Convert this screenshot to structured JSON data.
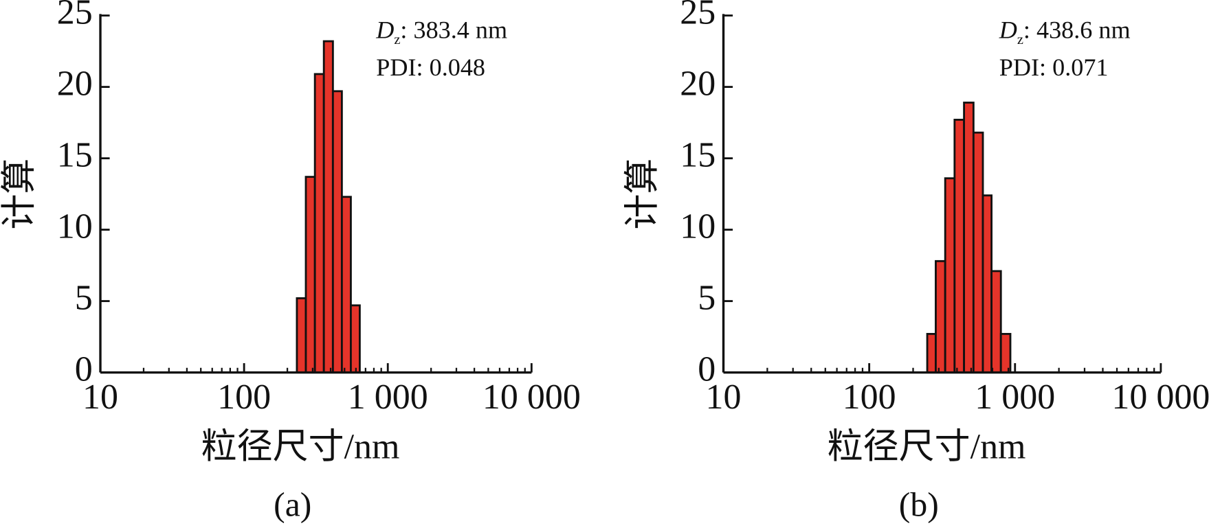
{
  "chart_data": [
    {
      "type": "histogram",
      "caption": "(a)",
      "x_label": "粒径尺寸/nm",
      "y_label": "计算",
      "annotation": {
        "symbol": "D",
        "subscript": "z",
        "text": ": 383.4 nm",
        "pdi": "PDI: 0.048"
      },
      "bins": [
        233,
        269,
        311,
        359,
        415,
        479,
        553,
        638
      ],
      "counts": [
        5.2,
        13.7,
        20.9,
        23.2,
        19.7,
        12.3,
        4.7
      ],
      "color": "#e5342a",
      "xlog": true,
      "xlim": [
        10,
        10000
      ],
      "xticks": [
        10,
        100,
        {
          "value": 1000,
          "label": "1 000"
        },
        {
          "value": 10000,
          "label": "10 000"
        }
      ],
      "ylim": [
        0,
        25
      ],
      "yticks": [
        0,
        5,
        10,
        15,
        20,
        25
      ]
    },
    {
      "type": "histogram",
      "caption": "(b)",
      "x_label": "粒径尺寸/nm",
      "y_label": "计算",
      "annotation": {
        "symbol": "D",
        "subscript": "z",
        "text": ": 438.6 nm",
        "pdi": "PDI: 0.071"
      },
      "bins": [
        250,
        286,
        332,
        385,
        447,
        519,
        602,
        690,
        800,
        929
      ],
      "counts": [
        2.7,
        7.8,
        13.6,
        17.7,
        18.9,
        16.8,
        12.4,
        7.1,
        2.7
      ],
      "color": "#e5342a",
      "xlog": true,
      "xlim": [
        10,
        10000
      ],
      "xticks": [
        10,
        100,
        {
          "value": 1000,
          "label": "1 000"
        },
        {
          "value": 10000,
          "label": "10 000"
        }
      ],
      "ylim": [
        0,
        25
      ],
      "yticks": [
        0,
        5,
        10,
        15,
        20,
        25
      ]
    }
  ]
}
